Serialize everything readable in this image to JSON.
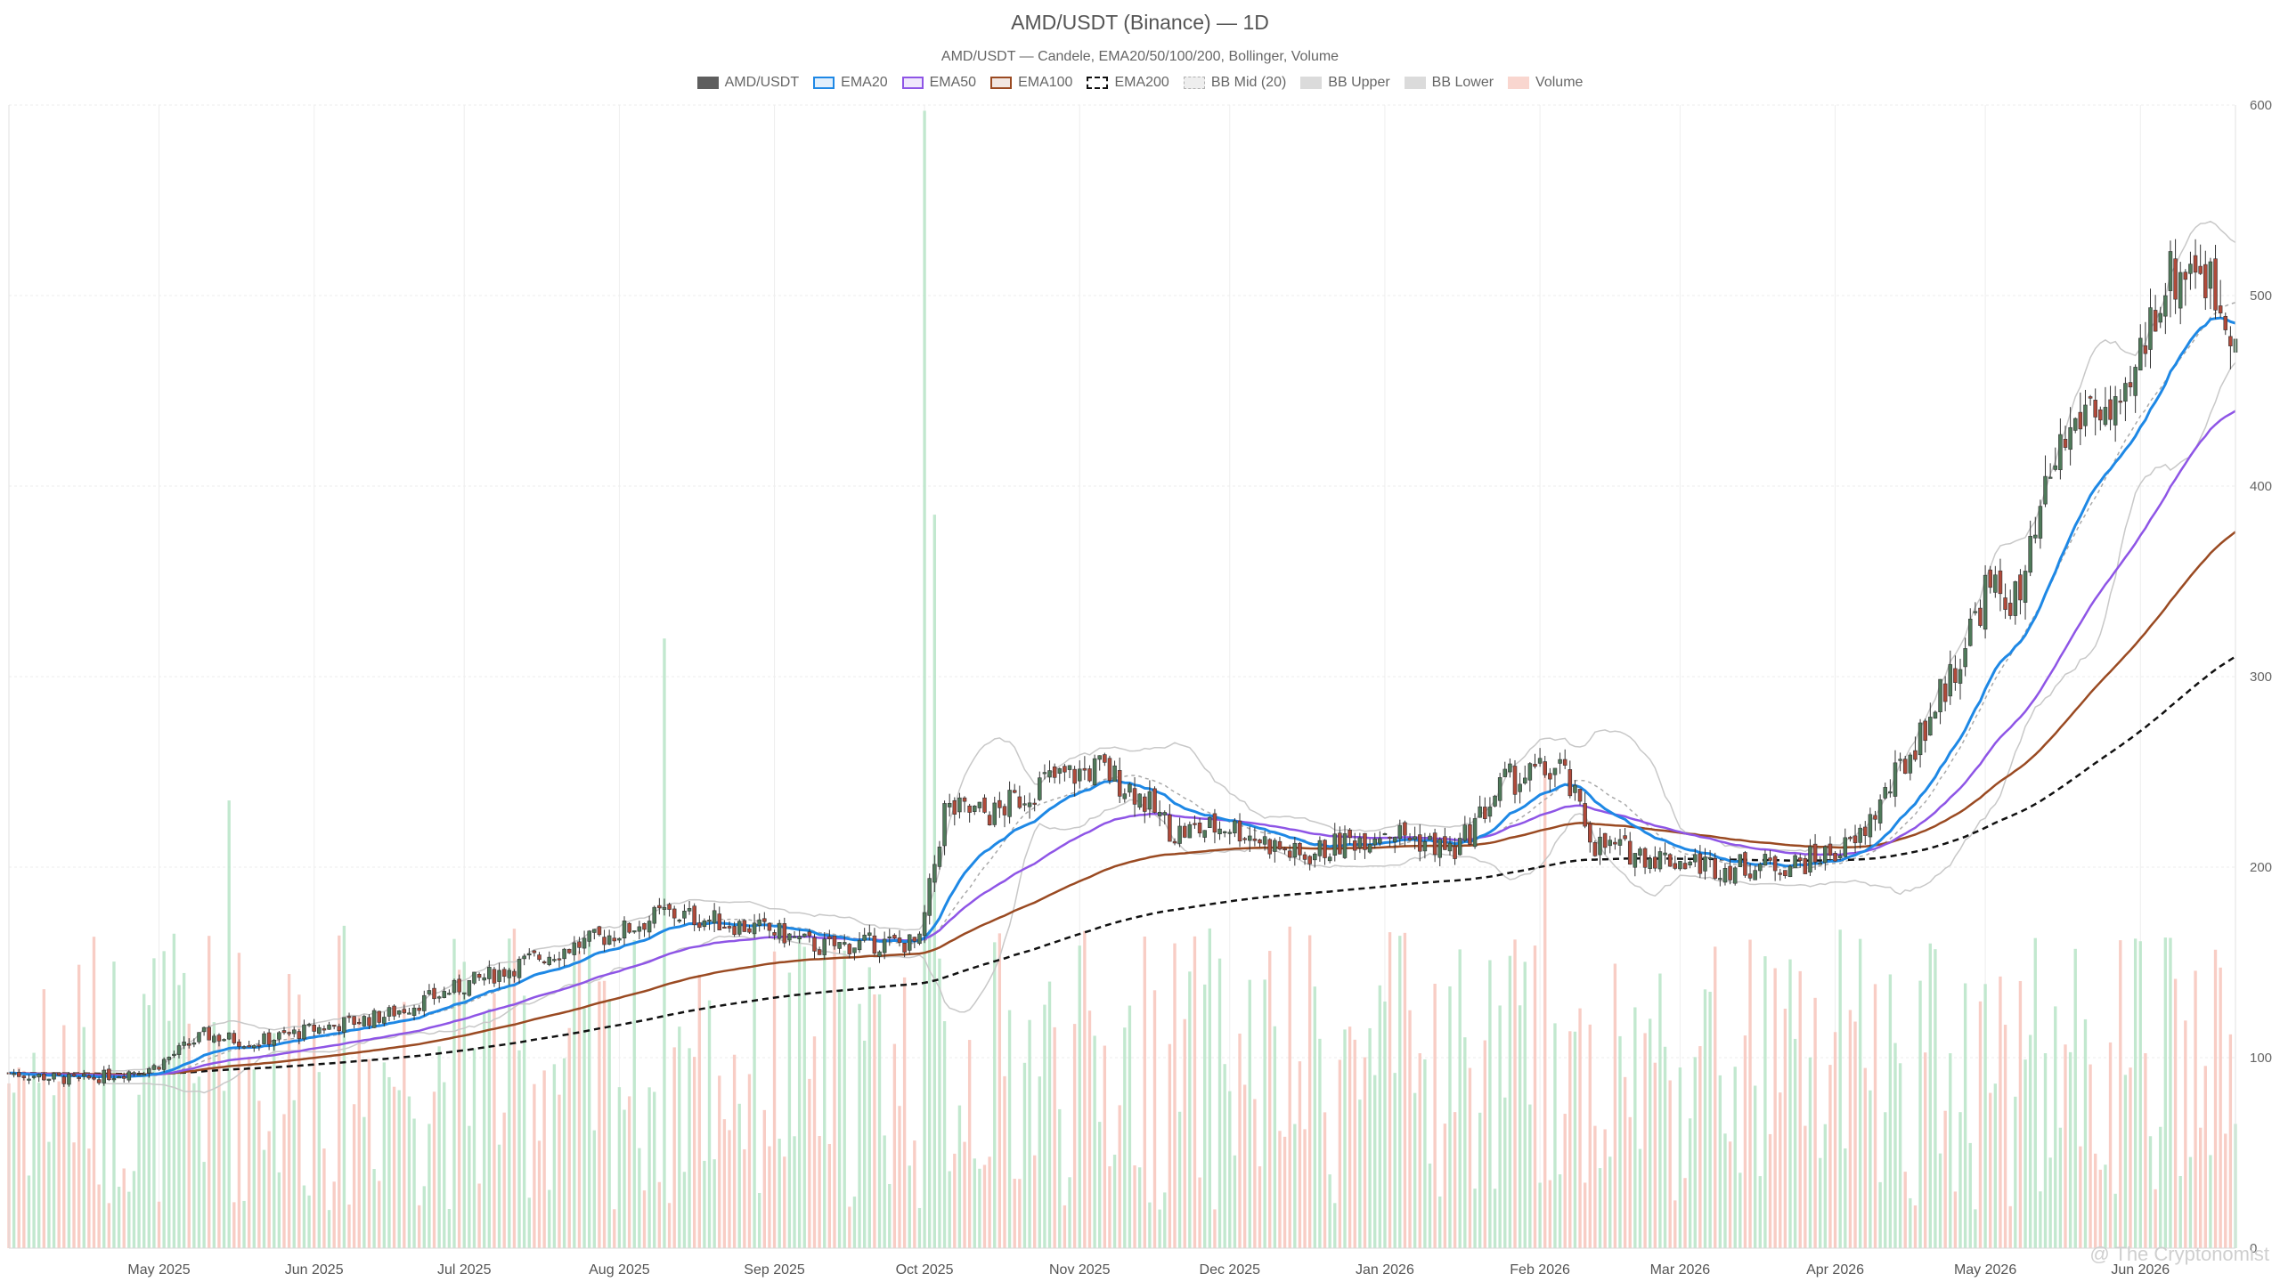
{
  "chart_data": {
    "type": "candlestick",
    "title": "AMD/USDT (Binance) — 1D",
    "subtitle": "AMD/USDT — Candele, EMA20/50/100/200, Bollinger, Volume",
    "legend": [
      {
        "name": "AMD/USDT",
        "color": "#5e5e5e",
        "style": "solid-fill"
      },
      {
        "name": "EMA20",
        "color": "#1e88e5",
        "style": "outline"
      },
      {
        "name": "EMA50",
        "color": "#8e55e6",
        "style": "outline"
      },
      {
        "name": "EMA100",
        "color": "#9a4a22",
        "style": "outline"
      },
      {
        "name": "EMA200",
        "color": "#111111",
        "style": "dashed"
      },
      {
        "name": "BB Mid (20)",
        "color": "#b0b0b0",
        "style": "dotted"
      },
      {
        "name": "BB Upper",
        "color": "#cccccc",
        "style": "light-fill"
      },
      {
        "name": "BB Lower",
        "color": "#cccccc",
        "style": "light-fill"
      },
      {
        "name": "Volume",
        "color": "#f7c4bb",
        "style": "light-fill"
      }
    ],
    "x_ticks": [
      "May 2025",
      "Jun 2025",
      "Jul 2025",
      "Aug 2025",
      "Sep 2025",
      "Oct 2025",
      "Nov 2025",
      "Dec 2025",
      "Jan 2026",
      "Feb 2026",
      "Mar 2026",
      "Apr 2026",
      "May 2026",
      "Jun 2026"
    ],
    "y_ticks": [
      "600",
      "500",
      "400",
      "300",
      "200",
      "100",
      "0"
    ],
    "ylim": [
      0,
      600
    ],
    "grid": true,
    "legend_position": "top-center",
    "colors": {
      "up": "#4f7a5a",
      "down": "#b04a3a",
      "vol_up": "#b7e4c7",
      "vol_down": "#f7c4bb",
      "ema20": "#1e88e5",
      "ema50": "#8e55e6",
      "ema100": "#9a4a22",
      "ema200": "#111111",
      "bb": "#c8c8c8",
      "bb_mid": "#aaaaaa"
    },
    "price_path": [
      [
        "2025-04-01",
        92
      ],
      [
        "2025-04-15",
        88
      ],
      [
        "2025-04-30",
        95
      ],
      [
        "2025-05-10",
        112
      ],
      [
        "2025-05-20",
        108
      ],
      [
        "2025-06-01",
        115
      ],
      [
        "2025-06-15",
        122
      ],
      [
        "2025-07-01",
        138
      ],
      [
        "2025-07-15",
        152
      ],
      [
        "2025-08-01",
        166
      ],
      [
        "2025-08-10",
        176
      ],
      [
        "2025-08-20",
        172
      ],
      [
        "2025-09-01",
        166
      ],
      [
        "2025-09-10",
        158
      ],
      [
        "2025-09-20",
        160
      ],
      [
        "2025-09-30",
        160
      ],
      [
        "2025-10-05",
        230
      ],
      [
        "2025-10-15",
        228
      ],
      [
        "2025-10-25",
        245
      ],
      [
        "2025-11-05",
        252
      ],
      [
        "2025-11-12",
        240
      ],
      [
        "2025-11-20",
        218
      ],
      [
        "2025-12-01",
        222
      ],
      [
        "2025-12-15",
        205
      ],
      [
        "2026-01-01",
        220
      ],
      [
        "2026-01-15",
        208
      ],
      [
        "2026-01-25",
        245
      ],
      [
        "2026-02-05",
        252
      ],
      [
        "2026-02-12",
        212
      ],
      [
        "2026-02-25",
        205
      ],
      [
        "2026-03-10",
        200
      ],
      [
        "2026-03-25",
        202
      ],
      [
        "2026-04-05",
        212
      ],
      [
        "2026-04-15",
        255
      ],
      [
        "2026-04-25",
        305
      ],
      [
        "2026-05-01",
        345
      ],
      [
        "2026-05-08",
        340
      ],
      [
        "2026-05-15",
        415
      ],
      [
        "2026-05-22",
        445
      ],
      [
        "2026-05-28",
        430
      ],
      [
        "2026-06-05",
        505
      ],
      [
        "2026-06-12",
        520
      ],
      [
        "2026-06-18",
        490
      ]
    ],
    "volume_peaks": [
      [
        "2025-10-01",
        597
      ],
      [
        "2025-10-03",
        385
      ],
      [
        "2025-08-10",
        320
      ],
      [
        "2025-05-15",
        235
      ],
      [
        "2026-02-02",
        250
      ]
    ]
  }
}
